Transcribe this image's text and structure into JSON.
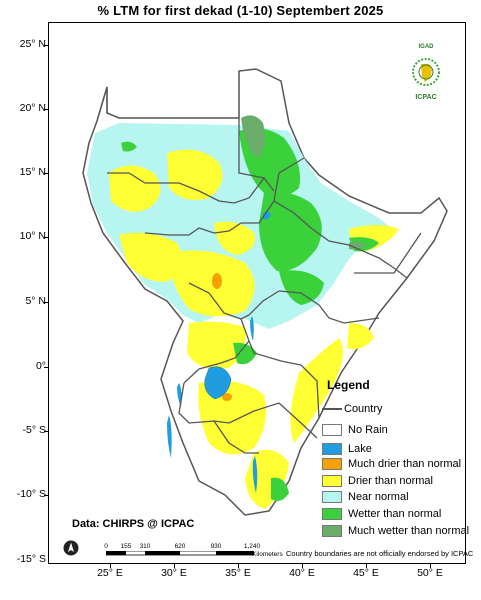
{
  "title": "% LTM for  first dekad (1-10) Septembert 2025",
  "lat_labels": [
    "25° N",
    "20° N",
    "15° N",
    "10° N",
    "5° N",
    "0°",
    "-5° S",
    "-10° S",
    "-15° S"
  ],
  "lon_labels": [
    "25° E",
    "30° E",
    "35° E",
    "40° E",
    "45° E",
    "50° E"
  ],
  "legend": {
    "title": "Legend",
    "country_label": "Country",
    "items": [
      {
        "label": "No Rain",
        "color": "#ffffff"
      },
      {
        "label": "Lake",
        "color": "#1f9de0"
      },
      {
        "label": "Much drier than normal",
        "color": "#f5a200"
      },
      {
        "label": "Drier than normal",
        "color": "#ffff33"
      },
      {
        "label": "Near normal",
        "color": "#b6f5f0"
      },
      {
        "label": "Wetter than normal",
        "color": "#3ad13a"
      },
      {
        "label": "Much wetter than normal",
        "color": "#6aac6a"
      }
    ]
  },
  "source": "Data: CHIRPS @ ICPAC",
  "scale": {
    "labels": [
      "0",
      "155",
      "310",
      "620",
      "930",
      "1,240"
    ],
    "unit": "Kilometers"
  },
  "disclaimer": "Country boundaries are not officially endorsed by ICPAC",
  "logo": {
    "top": "IGAD",
    "bottom": "ICPAC"
  }
}
